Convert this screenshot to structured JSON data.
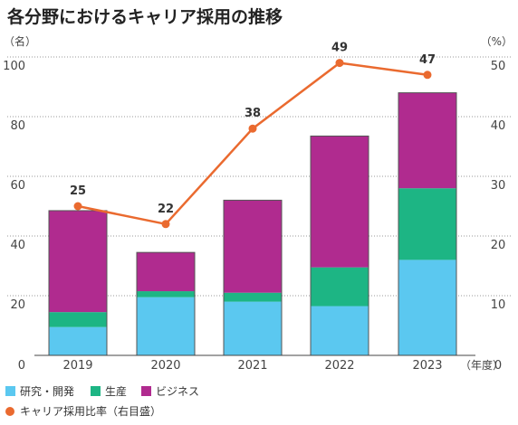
{
  "title": "各分野におけるキャリア採用の推移",
  "chart_data": {
    "type": "bar",
    "stacked": true,
    "categories": [
      "2019",
      "2020",
      "2021",
      "2022",
      "2023"
    ],
    "series": [
      {
        "name": "研究・開発",
        "values": [
          9.5,
          19.5,
          18,
          16.5,
          32
        ],
        "color": "#5bc8f0"
      },
      {
        "name": "生産",
        "values": [
          5,
          2,
          3,
          13,
          24
        ],
        "color": "#1db584"
      },
      {
        "name": "ビジネス",
        "values": [
          34,
          13,
          31,
          44,
          32
        ],
        "color": "#b02b8f"
      }
    ],
    "line_series": {
      "name": "キャリア採用比率（右目盛）",
      "values": [
        25,
        22,
        38,
        49,
        47
      ],
      "color": "#ea6a2f"
    },
    "y_left": {
      "unit": "（名）",
      "ylim": [
        0,
        100
      ],
      "ticks": [
        "0",
        "20",
        "40",
        "60",
        "80",
        "100"
      ]
    },
    "y_right": {
      "unit": "（%）",
      "ylim": [
        0,
        50
      ],
      "ticks": [
        "0",
        "10",
        "20",
        "30",
        "40",
        "50"
      ]
    },
    "x_unit": "（年度）",
    "grid": true,
    "legend_position": "bottom"
  }
}
